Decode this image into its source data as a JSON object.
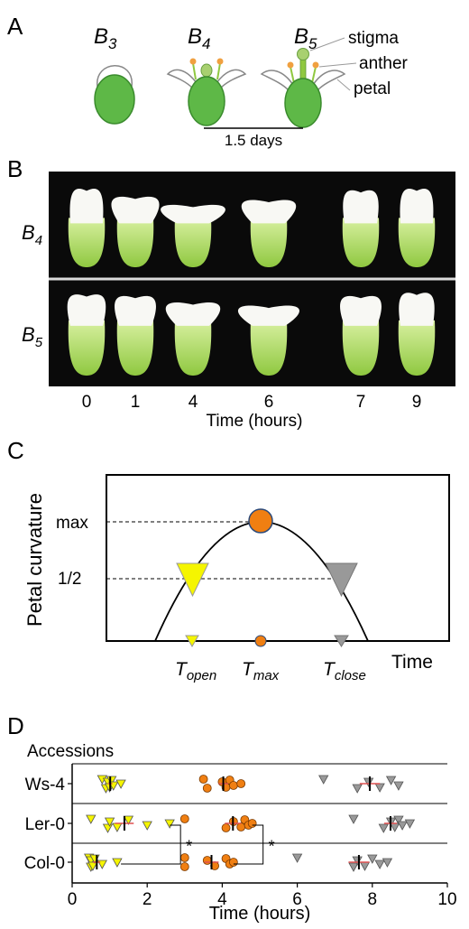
{
  "panels": {
    "A": {
      "label": "A",
      "stages": [
        {
          "base": "B",
          "sub": "3"
        },
        {
          "base": "B",
          "sub": "4"
        },
        {
          "base": "B",
          "sub": "5"
        }
      ],
      "parts": [
        "stigma",
        "anther",
        "petal"
      ],
      "scale_label": "1.5 days"
    },
    "B": {
      "label": "B",
      "rows": [
        {
          "base": "B",
          "sub": "4"
        },
        {
          "base": "B",
          "sub": "5"
        }
      ],
      "time_ticks": [
        "0",
        "1",
        "4",
        "6",
        "7",
        "9"
      ],
      "time_label": "Time (hours)"
    },
    "C": {
      "label": "C",
      "ylabel": "Petal curvature",
      "levels": [
        "max",
        "1/2"
      ],
      "xlabel": "Time",
      "markers": [
        {
          "base": "T",
          "sub": "open",
          "color": "#f5f500"
        },
        {
          "base": "T",
          "sub": "max",
          "color": "#f07f12"
        },
        {
          "base": "T",
          "sub": "close",
          "color": "#999999"
        }
      ]
    },
    "D": {
      "label": "D",
      "header": "Accessions"
    }
  },
  "chart_data": {
    "type": "scatter",
    "xlabel": "Time (hours)",
    "xlim": [
      0,
      10
    ],
    "x_ticks": [
      0,
      2,
      4,
      6,
      8,
      10
    ],
    "categories": [
      "Ws-4",
      "Ler-0",
      "Col-0"
    ],
    "significance": "*",
    "series": [
      {
        "marker": "triangle",
        "color": "#f5f500",
        "points": [
          {
            "category": "Ws-4",
            "x": [
              0.8,
              0.9,
              0.95,
              1.0,
              1.05,
              1.1,
              1.3
            ]
          },
          {
            "category": "Ler-0",
            "x": [
              0.5,
              0.95,
              1.0,
              1.2,
              1.5,
              2.0,
              2.6
            ]
          },
          {
            "category": "Col-0",
            "x": [
              0.45,
              0.5,
              0.5,
              0.55,
              0.6,
              0.8,
              1.2
            ]
          }
        ]
      },
      {
        "marker": "circle",
        "color": "#f07f12",
        "points": [
          {
            "category": "Ws-4",
            "x": [
              3.5,
              3.6,
              4.0,
              4.1,
              4.2,
              4.3,
              4.5
            ]
          },
          {
            "category": "Ler-0",
            "x": [
              3.0,
              4.1,
              4.3,
              4.5,
              4.6,
              4.7,
              4.8
            ]
          },
          {
            "category": "Col-0",
            "x": [
              3.0,
              3.0,
              3.6,
              3.8,
              4.1,
              4.2,
              4.3
            ]
          }
        ]
      },
      {
        "marker": "triangle",
        "color": "#999999",
        "points": [
          {
            "category": "Ws-4",
            "x": [
              6.7,
              7.6,
              7.9,
              8.2,
              8.5,
              8.7
            ]
          },
          {
            "category": "Ler-0",
            "x": [
              7.5,
              8.3,
              8.5,
              8.6,
              8.7,
              8.8,
              9.0
            ]
          },
          {
            "category": "Col-0",
            "x": [
              6.0,
              7.5,
              7.6,
              7.8,
              8.0,
              8.2,
              8.4
            ]
          }
        ]
      }
    ]
  }
}
